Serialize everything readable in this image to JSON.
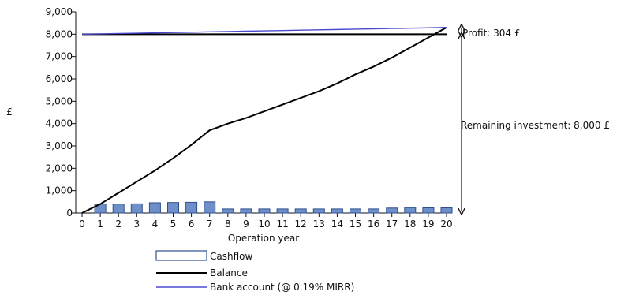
{
  "chart_data": {
    "type": "bar",
    "ylabel": "£",
    "xlabel": "Operation year",
    "ylim": [
      0,
      9000
    ],
    "yticks": [
      "0",
      "1,000",
      "2,000",
      "3,000",
      "4,000",
      "5,000",
      "6,000",
      "7,000",
      "8,000",
      "9,000"
    ],
    "x": [
      "0",
      "1",
      "2",
      "3",
      "4",
      "5",
      "6",
      "7",
      "8",
      "9",
      "10",
      "11",
      "12",
      "13",
      "14",
      "15",
      "16",
      "17",
      "18",
      "19",
      "20"
    ],
    "series": [
      {
        "name": "Cashflow",
        "kind": "bar",
        "color": "#6f8fc9",
        "values": [
          0,
          400,
          400,
          410,
          460,
          470,
          480,
          500,
          180,
          180,
          180,
          180,
          180,
          180,
          180,
          180,
          180,
          220,
          240,
          230,
          230
        ]
      },
      {
        "name": "Balance",
        "kind": "line",
        "color": "#000000",
        "values": [
          0,
          400,
          900,
          1400,
          1900,
          2450,
          3050,
          3700,
          4000,
          4250,
          4550,
          4850,
          5150,
          5450,
          5800,
          6200,
          6550,
          6950,
          7400,
          7850,
          8304
        ]
      },
      {
        "name": "Bank account (@ 0.19% MIRR)",
        "kind": "line",
        "color": "#4a4ad0",
        "values": [
          8000,
          8015,
          8030,
          8045,
          8060,
          8075,
          8090,
          8105,
          8120,
          8135,
          8150,
          8165,
          8180,
          8195,
          8210,
          8225,
          8240,
          8255,
          8270,
          8285,
          8304
        ]
      }
    ],
    "reference_line": {
      "name": "Investment",
      "value": 8000,
      "color": "#000000"
    },
    "annotations": {
      "profit": "Profit: 304 £",
      "remaining": "Remaining investment: 8,000 £"
    },
    "grid": false,
    "legend_position": "bottom"
  }
}
